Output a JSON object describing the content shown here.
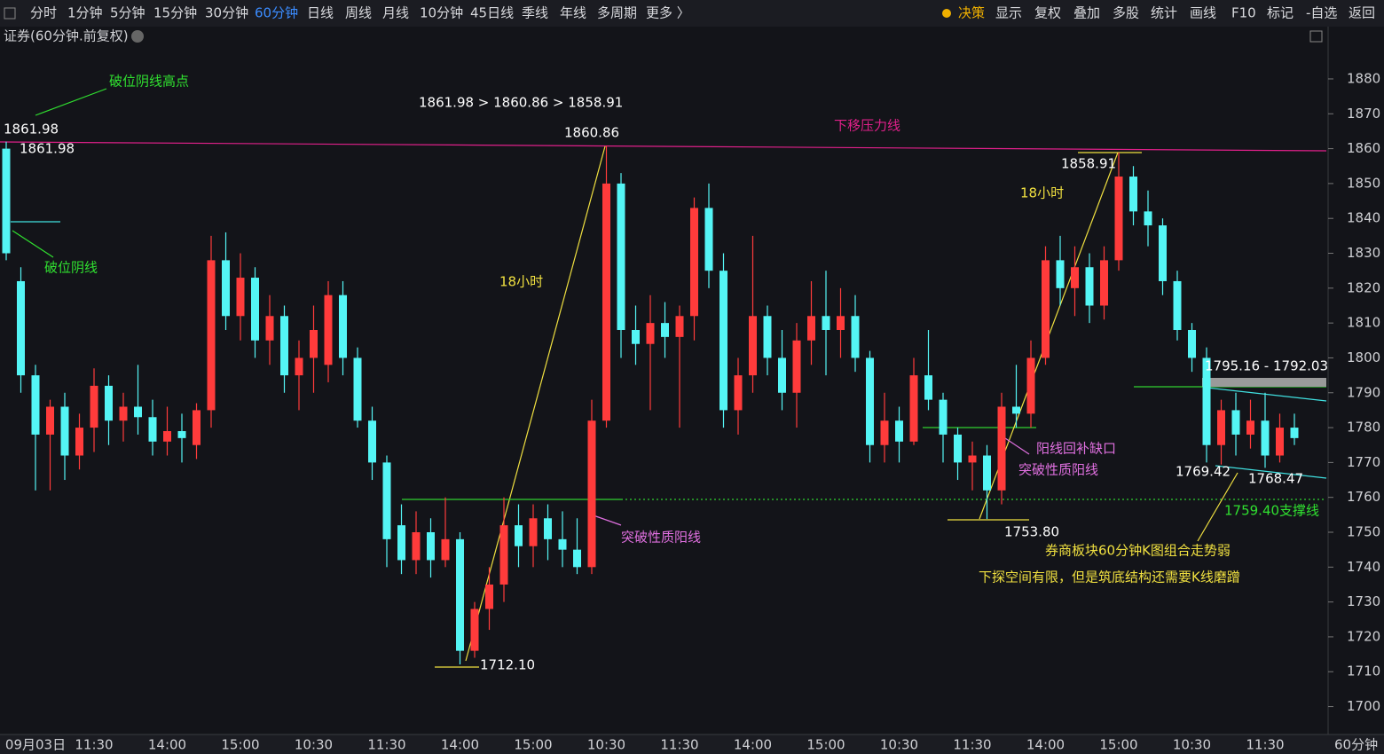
{
  "toolbar": {
    "left": [
      "分时",
      "1分钟",
      "5分钟",
      "15分钟",
      "30分钟",
      "60分钟",
      "日线",
      "周线",
      "月线",
      "10分钟",
      "45日线",
      "季线",
      "年线",
      "多周期",
      "更多 〉"
    ],
    "active": 5,
    "right": [
      "决策",
      "显示",
      "复权",
      "叠加",
      "多股",
      "统计",
      "画线",
      "F10",
      "标记",
      "-自选",
      "返回"
    ]
  },
  "chart_data": {
    "type": "candlestick",
    "title": "证券(60分钟.前复权)",
    "x_unit": "60分钟",
    "up_color": "#ff3b3b",
    "down_color": "#54f5f5",
    "categories": [
      null,
      null,
      "09月03日",
      null,
      null,
      null,
      "11:30",
      null,
      null,
      null,
      null,
      "14:00",
      null,
      null,
      null,
      null,
      "15:00",
      null,
      null,
      null,
      null,
      "10:30",
      null,
      null,
      null,
      null,
      "11:30",
      null,
      null,
      null,
      null,
      "14:00",
      null,
      null,
      null,
      null,
      "15:00",
      null,
      null,
      null,
      null,
      "10:30",
      null,
      null,
      null,
      null,
      "11:30",
      null,
      null,
      null,
      null,
      "14:00",
      null,
      null,
      null,
      null,
      "15:00",
      null,
      null,
      null,
      null,
      "10:30",
      null,
      null,
      null,
      null,
      "11:30",
      null,
      null,
      null,
      null,
      "14:00",
      null,
      null,
      null,
      null,
      "15:00",
      null,
      null,
      null,
      null,
      "10:30",
      null,
      null,
      null,
      null,
      "11:30",
      null,
      null
    ],
    "open": [
      1860,
      1822,
      1795,
      1778,
      1786,
      1772,
      1780,
      1792,
      1782,
      1786,
      1783,
      1776,
      1779,
      1775,
      1785,
      1828,
      1812,
      1823,
      1805,
      1812,
      1795,
      1800,
      1798,
      1818,
      1800,
      1782,
      1770,
      1752,
      1742,
      1750,
      1742,
      1748,
      1716,
      1728,
      1735,
      1752,
      1746,
      1754,
      1748,
      1745,
      1740,
      1782,
      1850,
      1808,
      1804,
      1810,
      1806,
      1812,
      1843,
      1825,
      1785,
      1795,
      1812,
      1800,
      1790,
      1805,
      1812,
      1808,
      1812,
      1800,
      1775,
      1782,
      1776,
      1795,
      1788,
      1778,
      1770,
      1772,
      1762,
      1786,
      1784,
      1800,
      1828,
      1820,
      1826,
      1815,
      1828,
      1852,
      1842,
      1838,
      1822,
      1808,
      1800,
      1775,
      1785,
      1778,
      1782,
      1772,
      1780
    ],
    "high": [
      1861.98,
      1826,
      1798,
      1788,
      1790,
      1784,
      1797,
      1795,
      1790,
      1798,
      1788,
      1786,
      1784,
      1787,
      1835,
      1836,
      1830,
      1826,
      1818,
      1815,
      1805,
      1815,
      1822,
      1822,
      1803,
      1786,
      1772,
      1758,
      1756,
      1754,
      1760,
      1750,
      1730,
      1740,
      1760,
      1758,
      1758,
      1758,
      1756,
      1754,
      1788,
      1860.86,
      1853,
      1815,
      1818,
      1816,
      1815,
      1846,
      1850,
      1830,
      1800,
      1835,
      1815,
      1808,
      1810,
      1822,
      1825,
      1820,
      1818,
      1802,
      1790,
      1786,
      1800,
      1808,
      1790,
      1780,
      1776,
      1775,
      1790,
      1798,
      1805,
      1832,
      1835,
      1832,
      1830,
      1832,
      1858.91,
      1855,
      1848,
      1840,
      1825,
      1810,
      1803,
      1788,
      1790,
      1788,
      1790,
      1784,
      1784
    ],
    "low": [
      1828,
      1790,
      1762,
      1762,
      1765,
      1768,
      1773,
      1775,
      1776,
      1778,
      1772,
      1772,
      1770,
      1771,
      1780,
      1808,
      1805,
      1800,
      1798,
      1790,
      1785,
      1790,
      1793,
      1795,
      1780,
      1765,
      1740,
      1738,
      1738,
      1737,
      1740,
      1712.1,
      1714,
      1722,
      1730,
      1740,
      1740,
      1742,
      1740,
      1738,
      1738,
      1780,
      1800,
      1798,
      1785,
      1800,
      1780,
      1805,
      1820,
      1780,
      1778,
      1790,
      1795,
      1785,
      1780,
      1798,
      1795,
      1800,
      1796,
      1770,
      1770,
      1770,
      1775,
      1785,
      1770,
      1765,
      1762,
      1753.8,
      1758,
      1780,
      1780,
      1798,
      1815,
      1812,
      1810,
      1811,
      1825,
      1838,
      1832,
      1818,
      1805,
      1796,
      1770,
      1769.42,
      1772,
      1774,
      1768.47,
      1770,
      1775
    ],
    "close": [
      1830,
      1795,
      1778,
      1786,
      1772,
      1780,
      1792,
      1782,
      1786,
      1783,
      1776,
      1779,
      1777,
      1785,
      1828,
      1812,
      1823,
      1805,
      1812,
      1795,
      1800,
      1808,
      1818,
      1800,
      1782,
      1770,
      1748,
      1742,
      1750,
      1742,
      1748,
      1716,
      1728,
      1735,
      1752,
      1746,
      1754,
      1748,
      1745,
      1740,
      1782,
      1850,
      1808,
      1804,
      1810,
      1806,
      1812,
      1843,
      1825,
      1785,
      1795,
      1812,
      1800,
      1790,
      1805,
      1812,
      1808,
      1812,
      1800,
      1775,
      1782,
      1776,
      1795,
      1788,
      1778,
      1770,
      1772,
      1762,
      1786,
      1784,
      1800,
      1828,
      1820,
      1826,
      1815,
      1828,
      1852,
      1842,
      1838,
      1822,
      1808,
      1800,
      1775,
      1785,
      1778,
      1782,
      1772,
      1780,
      1777
    ],
    "ylim": [
      1692,
      1895
    ],
    "yticks": [
      1700,
      1710,
      1720,
      1730,
      1740,
      1750,
      1760,
      1770,
      1780,
      1790,
      1800,
      1810,
      1820,
      1830,
      1840,
      1850,
      1860,
      1870,
      1880
    ],
    "annotations": [
      "破位阴线高点",
      "1861.98",
      "1861.98",
      "破位阴线",
      "1861.98 > 1860.86 > 1858.91",
      "1860.86",
      "下移压力线",
      "18小时",
      "18小时",
      "1858.91",
      "1795.16 - 1792.03",
      "阳线回补缺口",
      "突破性质阳线",
      "突破性质阳线",
      "1769.42",
      "1768.47",
      "1759.40支撑线",
      "1753.80",
      "1712.10",
      "券商板块60分钟K图组合走势弱",
      "下探空间有限，但是筑底结构还需要K线磨蹭"
    ]
  }
}
